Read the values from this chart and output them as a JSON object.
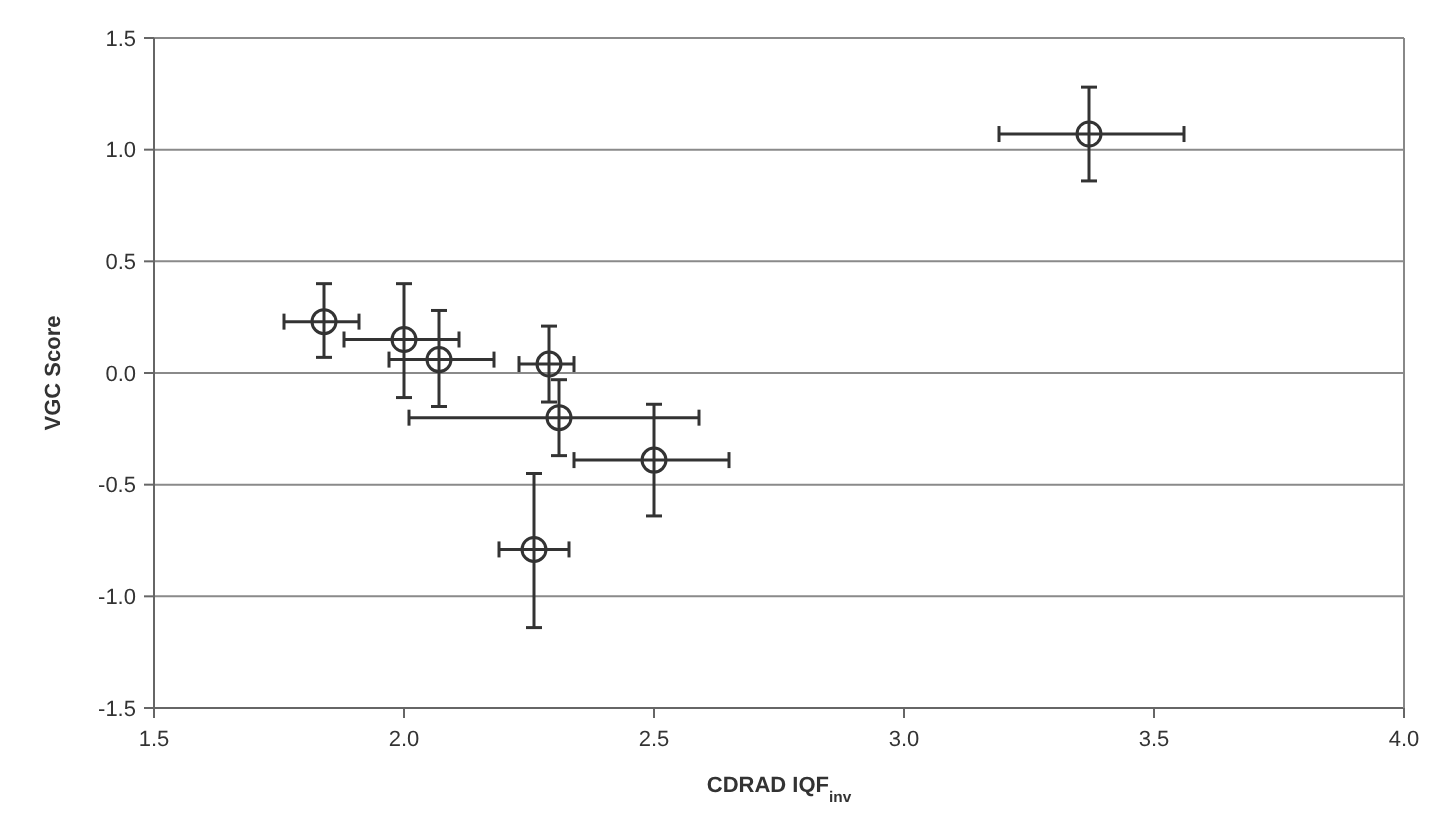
{
  "chart_data": {
    "type": "scatter",
    "xlabel": "CDRAD IQF$_{inv}$",
    "ylabel": "VGC Score",
    "x": [
      1.84,
      2.0,
      2.07,
      2.29,
      2.31,
      2.5,
      2.26,
      3.37
    ],
    "values": [
      0.23,
      0.15,
      0.06,
      0.04,
      -0.2,
      -0.39,
      -0.79,
      1.07
    ],
    "errors": [
      [
        0.07,
        0.4
      ],
      [
        -0.11,
        0.4
      ],
      [
        -0.15,
        0.28
      ],
      [
        -0.13,
        0.21
      ],
      [
        -0.37,
        -0.03
      ],
      [
        -0.64,
        -0.14
      ],
      [
        -1.14,
        -0.45
      ],
      [
        0.86,
        1.28
      ]
    ],
    "xerrors": [
      [
        1.76,
        1.91
      ],
      [
        1.88,
        2.11
      ],
      [
        1.97,
        2.18
      ],
      [
        2.23,
        2.34
      ],
      [
        2.01,
        2.59
      ],
      [
        2.34,
        2.65
      ],
      [
        2.19,
        2.33
      ],
      [
        3.19,
        3.56
      ]
    ],
    "color": "#333333",
    "marker": "circle",
    "xlim": [
      1.5,
      4.0
    ],
    "xticks": [
      {
        "value": 1.5,
        "label": "1.5"
      },
      {
        "value": 2,
        "label": "2.0"
      },
      {
        "value": 2.5,
        "label": "2.5"
      },
      {
        "value": 3,
        "label": "3.0"
      },
      {
        "value": 3.5,
        "label": "3.5"
      },
      {
        "value": 4,
        "label": "4.0"
      }
    ],
    "ylim": [
      -1.5,
      1.5
    ],
    "yticks": [
      {
        "value": -1.5,
        "label": "-1.5"
      },
      {
        "value": -1,
        "label": "-1.0"
      },
      {
        "value": -0.5,
        "label": "-0.5"
      },
      {
        "value": 0,
        "label": "0.0"
      },
      {
        "value": 0.5,
        "label": "0.5"
      },
      {
        "value": 1,
        "label": "1.0"
      },
      {
        "value": 1.5,
        "label": "1.5"
      }
    ],
    "grid": "y"
  }
}
